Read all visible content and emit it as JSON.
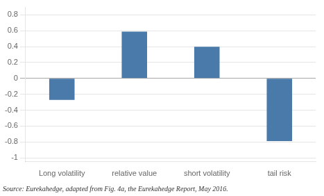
{
  "chart_data": {
    "type": "bar",
    "categories": [
      "Long volatility",
      "relative value",
      "short volatility",
      "tail risk"
    ],
    "values": [
      -0.27,
      0.59,
      0.4,
      -0.79
    ],
    "color": "#4a7aaa",
    "ylim": [
      -1.05,
      0.9
    ],
    "yticks": [
      -1,
      -0.8,
      -0.6,
      -0.4,
      -0.2,
      0,
      0.2,
      0.4,
      0.6,
      0.8
    ],
    "grid": true,
    "annotations": [
      "Source: Eurekahedge, adapted from Fig. 4a, the Eurekahedge Report, May 2016."
    ]
  }
}
